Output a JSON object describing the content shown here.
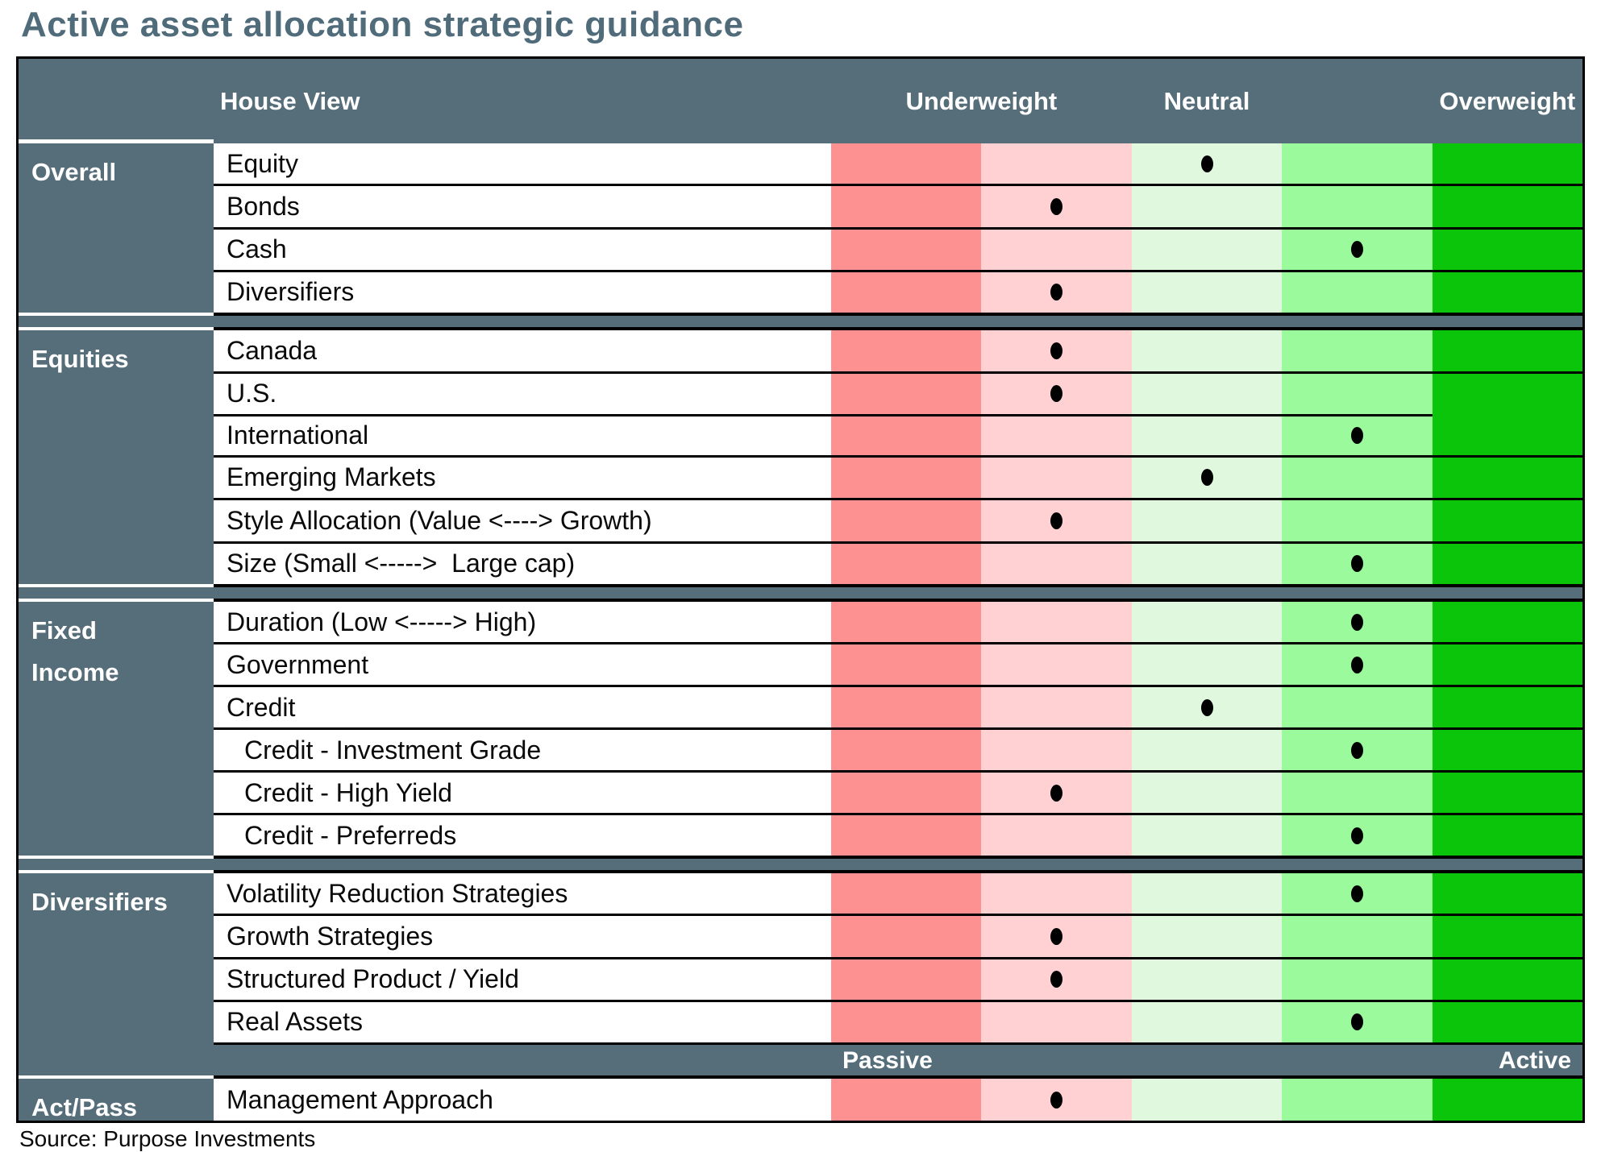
{
  "title": "Active asset allocation strategic guidance",
  "source": "Source: Purpose Investments",
  "colors": {
    "slate": "#566D7A",
    "title_text": "#506B7A",
    "dot": "#000000",
    "row_border": "#000000"
  },
  "chart_data": {
    "type": "table",
    "corner_label": "House View",
    "scale": {
      "levels": 5,
      "labels": {
        "underweight": "Underweight",
        "neutral": "Neutral",
        "overweight": "Overweight"
      },
      "colors": [
        "#FD9192",
        "#FFD1D2",
        "#DFF8DE",
        "#9BFA9B",
        "#0BC50B"
      ],
      "position_meaning": "1 = strong underweight, 3 = neutral, 5 = strong overweight"
    },
    "footer_scale": {
      "passive": "Passive",
      "active": "Active"
    },
    "sections": [
      {
        "label": "Overall",
        "rows": [
          {
            "label": "Equity",
            "position": 3
          },
          {
            "label": "Bonds",
            "position": 2
          },
          {
            "label": "Cash",
            "position": 4
          },
          {
            "label": "Diversifiers",
            "position": 2
          }
        ]
      },
      {
        "label": "Equities",
        "rows": [
          {
            "label": "Canada",
            "position": 2
          },
          {
            "label": "U.S.",
            "position": 2
          },
          {
            "label": "International",
            "position": 4,
            "overweight_cell_merged_with_row_above": true
          },
          {
            "label": "Emerging Markets",
            "position": 3
          },
          {
            "label": "Style Allocation (Value <----> Growth)",
            "position": 2
          },
          {
            "label": "Size (Small <----->  Large cap)",
            "position": 4
          }
        ]
      },
      {
        "label": "Fixed Income",
        "label_lines": [
          "Fixed",
          "Income"
        ],
        "rows": [
          {
            "label": "Duration (Low <-----> High)",
            "position": 4
          },
          {
            "label": "Government",
            "position": 4
          },
          {
            "label": "Credit",
            "position": 3
          },
          {
            "label": "Credit - Investment Grade",
            "position": 4,
            "indent": true
          },
          {
            "label": "Credit - High Yield",
            "position": 2,
            "indent": true
          },
          {
            "label": "Credit - Preferreds",
            "position": 4,
            "indent": true
          }
        ]
      },
      {
        "label": "Diversifiers",
        "rows": [
          {
            "label": "Volatility Reduction Strategies",
            "position": 4
          },
          {
            "label": "Growth Strategies",
            "position": 2
          },
          {
            "label": "Structured Product / Yield",
            "position": 2
          },
          {
            "label": "Real Assets",
            "position": 4
          }
        ]
      },
      {
        "label": "Act/Pass",
        "rows": [
          {
            "label": "Management Approach",
            "position": 2
          }
        ]
      }
    ]
  }
}
